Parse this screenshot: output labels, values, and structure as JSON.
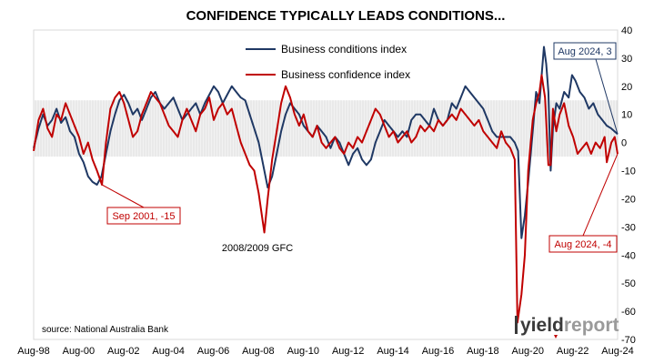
{
  "chart_data": {
    "type": "line",
    "title": "CONFIDENCE TYPICALLY LEADS CONDITIONS...",
    "source": "source: National Australia Bank",
    "ylim": [
      -70,
      40
    ],
    "yticks": [
      40,
      30,
      20,
      10,
      0,
      -10,
      -20,
      -30,
      -40,
      -50,
      -60,
      -70
    ],
    "xticks": [
      "Aug-98",
      "Aug-00",
      "Aug-02",
      "Aug-04",
      "Aug-06",
      "Aug-08",
      "Aug-10",
      "Aug-12",
      "Aug-14",
      "Aug-16",
      "Aug-18",
      "Aug-20",
      "Aug-22",
      "Aug-24"
    ],
    "xrange": [
      1998.58,
      2024.58
    ],
    "legend_position": "top-center",
    "grid": false,
    "shaded_band": [
      -5,
      15
    ],
    "series": [
      {
        "name": "Business conditions index",
        "color": "#1f3864",
        "points": [
          [
            1998.58,
            -2
          ],
          [
            1998.8,
            5
          ],
          [
            1999.0,
            10
          ],
          [
            1999.2,
            6
          ],
          [
            1999.4,
            8
          ],
          [
            1999.6,
            12
          ],
          [
            1999.8,
            7
          ],
          [
            2000.0,
            9
          ],
          [
            2000.2,
            4
          ],
          [
            2000.4,
            2
          ],
          [
            2000.6,
            -4
          ],
          [
            2000.8,
            -7
          ],
          [
            2001.0,
            -12
          ],
          [
            2001.2,
            -14
          ],
          [
            2001.4,
            -15
          ],
          [
            2001.6,
            -12
          ],
          [
            2001.8,
            -4
          ],
          [
            2002.0,
            4
          ],
          [
            2002.2,
            10
          ],
          [
            2002.4,
            15
          ],
          [
            2002.6,
            17
          ],
          [
            2002.8,
            14
          ],
          [
            2003.0,
            10
          ],
          [
            2003.2,
            12
          ],
          [
            2003.4,
            8
          ],
          [
            2003.6,
            12
          ],
          [
            2003.8,
            16
          ],
          [
            2004.0,
            18
          ],
          [
            2004.2,
            14
          ],
          [
            2004.4,
            12
          ],
          [
            2004.6,
            14
          ],
          [
            2004.8,
            16
          ],
          [
            2005.0,
            12
          ],
          [
            2005.2,
            8
          ],
          [
            2005.4,
            10
          ],
          [
            2005.6,
            12
          ],
          [
            2005.8,
            14
          ],
          [
            2006.0,
            10
          ],
          [
            2006.2,
            14
          ],
          [
            2006.4,
            17
          ],
          [
            2006.6,
            20
          ],
          [
            2006.8,
            18
          ],
          [
            2007.0,
            14
          ],
          [
            2007.2,
            17
          ],
          [
            2007.4,
            20
          ],
          [
            2007.6,
            18
          ],
          [
            2007.8,
            16
          ],
          [
            2008.0,
            15
          ],
          [
            2008.2,
            10
          ],
          [
            2008.4,
            5
          ],
          [
            2008.6,
            0
          ],
          [
            2008.8,
            -8
          ],
          [
            2009.0,
            -16
          ],
          [
            2009.2,
            -12
          ],
          [
            2009.4,
            -4
          ],
          [
            2009.6,
            4
          ],
          [
            2009.8,
            10
          ],
          [
            2010.0,
            14
          ],
          [
            2010.2,
            12
          ],
          [
            2010.4,
            10
          ],
          [
            2010.6,
            6
          ],
          [
            2010.8,
            4
          ],
          [
            2011.0,
            2
          ],
          [
            2011.2,
            6
          ],
          [
            2011.4,
            4
          ],
          [
            2011.6,
            2
          ],
          [
            2011.8,
            -2
          ],
          [
            2012.0,
            2
          ],
          [
            2012.2,
            0
          ],
          [
            2012.4,
            -4
          ],
          [
            2012.6,
            -8
          ],
          [
            2012.8,
            -4
          ],
          [
            2013.0,
            -2
          ],
          [
            2013.2,
            -6
          ],
          [
            2013.4,
            -8
          ],
          [
            2013.6,
            -6
          ],
          [
            2013.8,
            0
          ],
          [
            2014.0,
            4
          ],
          [
            2014.2,
            8
          ],
          [
            2014.4,
            6
          ],
          [
            2014.6,
            4
          ],
          [
            2014.8,
            2
          ],
          [
            2015.0,
            4
          ],
          [
            2015.2,
            2
          ],
          [
            2015.4,
            8
          ],
          [
            2015.6,
            10
          ],
          [
            2015.8,
            10
          ],
          [
            2016.0,
            8
          ],
          [
            2016.2,
            6
          ],
          [
            2016.4,
            12
          ],
          [
            2016.6,
            8
          ],
          [
            2016.8,
            6
          ],
          [
            2017.0,
            8
          ],
          [
            2017.2,
            14
          ],
          [
            2017.4,
            12
          ],
          [
            2017.6,
            16
          ],
          [
            2017.8,
            20
          ],
          [
            2018.0,
            18
          ],
          [
            2018.2,
            16
          ],
          [
            2018.4,
            14
          ],
          [
            2018.6,
            12
          ],
          [
            2018.8,
            8
          ],
          [
            2019.0,
            4
          ],
          [
            2019.2,
            2
          ],
          [
            2019.4,
            2
          ],
          [
            2019.6,
            2
          ],
          [
            2019.8,
            2
          ],
          [
            2020.0,
            0
          ],
          [
            2020.15,
            -3
          ],
          [
            2020.3,
            -34
          ],
          [
            2020.45,
            -26
          ],
          [
            2020.6,
            -14
          ],
          [
            2020.8,
            4
          ],
          [
            2020.95,
            18
          ],
          [
            2021.1,
            14
          ],
          [
            2021.2,
            24
          ],
          [
            2021.3,
            34
          ],
          [
            2021.4,
            28
          ],
          [
            2021.5,
            18
          ],
          [
            2021.6,
            -10
          ],
          [
            2021.7,
            5
          ],
          [
            2021.85,
            14
          ],
          [
            2022.0,
            12
          ],
          [
            2022.2,
            18
          ],
          [
            2022.4,
            16
          ],
          [
            2022.55,
            24
          ],
          [
            2022.7,
            22
          ],
          [
            2022.9,
            18
          ],
          [
            2023.1,
            16
          ],
          [
            2023.3,
            12
          ],
          [
            2023.5,
            14
          ],
          [
            2023.7,
            10
          ],
          [
            2023.9,
            8
          ],
          [
            2024.1,
            6
          ],
          [
            2024.3,
            5
          ],
          [
            2024.58,
            3
          ]
        ]
      },
      {
        "name": "Business confidence index",
        "color": "#c00000",
        "points": [
          [
            1998.58,
            -3
          ],
          [
            1998.8,
            8
          ],
          [
            1999.0,
            12
          ],
          [
            1999.2,
            5
          ],
          [
            1999.4,
            2
          ],
          [
            1999.6,
            10
          ],
          [
            1999.8,
            8
          ],
          [
            2000.0,
            14
          ],
          [
            2000.2,
            10
          ],
          [
            2000.4,
            6
          ],
          [
            2000.6,
            2
          ],
          [
            2000.8,
            -4
          ],
          [
            2001.0,
            0
          ],
          [
            2001.2,
            -6
          ],
          [
            2001.4,
            -10
          ],
          [
            2001.62,
            -15
          ],
          [
            2001.8,
            0
          ],
          [
            2002.0,
            12
          ],
          [
            2002.2,
            16
          ],
          [
            2002.4,
            18
          ],
          [
            2002.6,
            14
          ],
          [
            2002.8,
            8
          ],
          [
            2003.0,
            2
          ],
          [
            2003.2,
            4
          ],
          [
            2003.4,
            10
          ],
          [
            2003.6,
            14
          ],
          [
            2003.8,
            18
          ],
          [
            2004.0,
            16
          ],
          [
            2004.2,
            14
          ],
          [
            2004.4,
            10
          ],
          [
            2004.6,
            6
          ],
          [
            2004.8,
            4
          ],
          [
            2005.0,
            2
          ],
          [
            2005.2,
            8
          ],
          [
            2005.4,
            12
          ],
          [
            2005.6,
            8
          ],
          [
            2005.8,
            4
          ],
          [
            2006.0,
            10
          ],
          [
            2006.2,
            12
          ],
          [
            2006.4,
            16
          ],
          [
            2006.6,
            8
          ],
          [
            2006.8,
            12
          ],
          [
            2007.0,
            14
          ],
          [
            2007.2,
            10
          ],
          [
            2007.4,
            12
          ],
          [
            2007.6,
            6
          ],
          [
            2007.8,
            0
          ],
          [
            2008.0,
            -4
          ],
          [
            2008.2,
            -8
          ],
          [
            2008.4,
            -10
          ],
          [
            2008.6,
            -18
          ],
          [
            2008.85,
            -32
          ],
          [
            2009.0,
            -20
          ],
          [
            2009.2,
            -6
          ],
          [
            2009.4,
            4
          ],
          [
            2009.6,
            14
          ],
          [
            2009.8,
            20
          ],
          [
            2010.0,
            16
          ],
          [
            2010.2,
            10
          ],
          [
            2010.4,
            6
          ],
          [
            2010.6,
            10
          ],
          [
            2010.8,
            4
          ],
          [
            2011.0,
            2
          ],
          [
            2011.2,
            6
          ],
          [
            2011.4,
            0
          ],
          [
            2011.6,
            -2
          ],
          [
            2011.8,
            0
          ],
          [
            2012.0,
            2
          ],
          [
            2012.2,
            -2
          ],
          [
            2012.4,
            -4
          ],
          [
            2012.6,
            0
          ],
          [
            2012.8,
            -2
          ],
          [
            2013.0,
            2
          ],
          [
            2013.2,
            0
          ],
          [
            2013.4,
            4
          ],
          [
            2013.6,
            8
          ],
          [
            2013.8,
            12
          ],
          [
            2014.0,
            10
          ],
          [
            2014.2,
            6
          ],
          [
            2014.4,
            2
          ],
          [
            2014.6,
            4
          ],
          [
            2014.8,
            0
          ],
          [
            2015.0,
            2
          ],
          [
            2015.2,
            4
          ],
          [
            2015.4,
            0
          ],
          [
            2015.6,
            2
          ],
          [
            2015.8,
            6
          ],
          [
            2016.0,
            4
          ],
          [
            2016.2,
            6
          ],
          [
            2016.4,
            4
          ],
          [
            2016.6,
            8
          ],
          [
            2016.8,
            6
          ],
          [
            2017.0,
            8
          ],
          [
            2017.2,
            10
          ],
          [
            2017.4,
            8
          ],
          [
            2017.6,
            12
          ],
          [
            2017.8,
            10
          ],
          [
            2018.0,
            8
          ],
          [
            2018.2,
            6
          ],
          [
            2018.4,
            8
          ],
          [
            2018.6,
            4
          ],
          [
            2018.8,
            2
          ],
          [
            2019.0,
            0
          ],
          [
            2019.2,
            -2
          ],
          [
            2019.4,
            4
          ],
          [
            2019.6,
            0
          ],
          [
            2019.8,
            -2
          ],
          [
            2020.0,
            -6
          ],
          [
            2020.12,
            -64
          ],
          [
            2020.3,
            -54
          ],
          [
            2020.45,
            -40
          ],
          [
            2020.6,
            -10
          ],
          [
            2020.8,
            8
          ],
          [
            2020.95,
            14
          ],
          [
            2021.1,
            18
          ],
          [
            2021.2,
            24
          ],
          [
            2021.35,
            16
          ],
          [
            2021.5,
            -8
          ],
          [
            2021.6,
            -8
          ],
          [
            2021.7,
            12
          ],
          [
            2021.85,
            4
          ],
          [
            2022.0,
            10
          ],
          [
            2022.2,
            14
          ],
          [
            2022.4,
            6
          ],
          [
            2022.6,
            2
          ],
          [
            2022.8,
            -4
          ],
          [
            2023.0,
            -2
          ],
          [
            2023.2,
            0
          ],
          [
            2023.4,
            -4
          ],
          [
            2023.6,
            0
          ],
          [
            2023.8,
            -2
          ],
          [
            2024.0,
            2
          ],
          [
            2024.1,
            -7
          ],
          [
            2024.3,
            0
          ],
          [
            2024.45,
            2
          ],
          [
            2024.58,
            -4
          ]
        ]
      }
    ],
    "annotations": [
      {
        "text": "Sep 2001, -15",
        "color": "#c00000",
        "point": [
          2001.62,
          -15
        ]
      },
      {
        "text": "2008/2009 GFC",
        "color": "#000000"
      },
      {
        "text": "Aug 2024, 3",
        "color": "#1f3864",
        "point": [
          2024.58,
          3
        ]
      },
      {
        "text": "Aug 2024, -4",
        "color": "#c00000",
        "point": [
          2024.58,
          -4
        ]
      }
    ]
  },
  "logo": {
    "part1": "yield",
    "part2": "report"
  }
}
